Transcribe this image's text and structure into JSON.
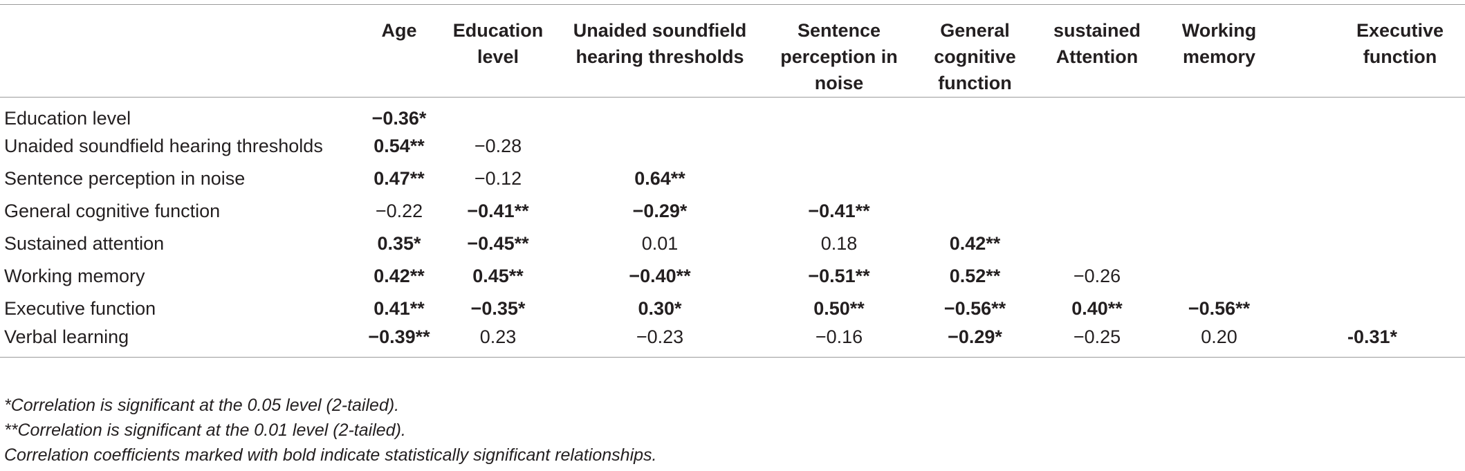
{
  "table": {
    "columns": [
      "",
      "Age",
      "Education level",
      "Unaided soundfield hearing thresholds",
      "Sentence perception in noise",
      "General cognitive function",
      "sustained Attention",
      "Working memory",
      "Executive function"
    ],
    "rows": [
      {
        "label": "Education level",
        "cells": [
          {
            "text": "−0.36*",
            "bold": true
          }
        ]
      },
      {
        "label": "Unaided soundfield hearing thresholds",
        "cells": [
          {
            "text": "0.54**",
            "bold": true
          },
          {
            "text": "−0.28",
            "bold": false
          }
        ]
      },
      {
        "label": "Sentence perception in noise",
        "cells": [
          {
            "text": "0.47**",
            "bold": true
          },
          {
            "text": "−0.12",
            "bold": false
          },
          {
            "text": "0.64**",
            "bold": true
          }
        ]
      },
      {
        "label": "General cognitive function",
        "cells": [
          {
            "text": "−0.22",
            "bold": false
          },
          {
            "text": "−0.41**",
            "bold": true
          },
          {
            "text": "−0.29*",
            "bold": true
          },
          {
            "text": "−0.41**",
            "bold": true
          }
        ]
      },
      {
        "label": "Sustained attention",
        "cells": [
          {
            "text": "0.35*",
            "bold": true
          },
          {
            "text": "−0.45**",
            "bold": true
          },
          {
            "text": "0.01",
            "bold": false
          },
          {
            "text": "0.18",
            "bold": false
          },
          {
            "text": "0.42**",
            "bold": true
          }
        ]
      },
      {
        "label": "Working memory",
        "cells": [
          {
            "text": "0.42**",
            "bold": true
          },
          {
            "text": "0.45**",
            "bold": true
          },
          {
            "text": "−0.40**",
            "bold": true
          },
          {
            "text": "−0.51**",
            "bold": true
          },
          {
            "text": "0.52**",
            "bold": true
          },
          {
            "text": "−0.26",
            "bold": false
          }
        ]
      },
      {
        "label": "Executive function",
        "cells": [
          {
            "text": "0.41**",
            "bold": true
          },
          {
            "text": "−0.35*",
            "bold": true
          },
          {
            "text": "0.30*",
            "bold": true
          },
          {
            "text": "0.50**",
            "bold": true
          },
          {
            "text": "−0.56**",
            "bold": true
          },
          {
            "text": "0.40**",
            "bold": true
          },
          {
            "text": "−0.56**",
            "bold": true
          }
        ]
      },
      {
        "label": "Verbal learning",
        "cells": [
          {
            "text": "−0.39**",
            "bold": true
          },
          {
            "text": "0.23",
            "bold": false
          },
          {
            "text": "−0.23",
            "bold": false
          },
          {
            "text": "−0.16",
            "bold": false
          },
          {
            "text": "−0.29*",
            "bold": true
          },
          {
            "text": "−0.25",
            "bold": false
          },
          {
            "text": "0.20",
            "bold": false
          },
          {
            "text": "-0.31*",
            "bold": true
          }
        ]
      }
    ]
  },
  "notes": [
    "*Correlation is significant at the 0.05 level (2-tailed).",
    "**Correlation is significant at the 0.01 level (2-tailed).",
    "Correlation coefficients marked with bold indicate statistically significant relationships."
  ]
}
